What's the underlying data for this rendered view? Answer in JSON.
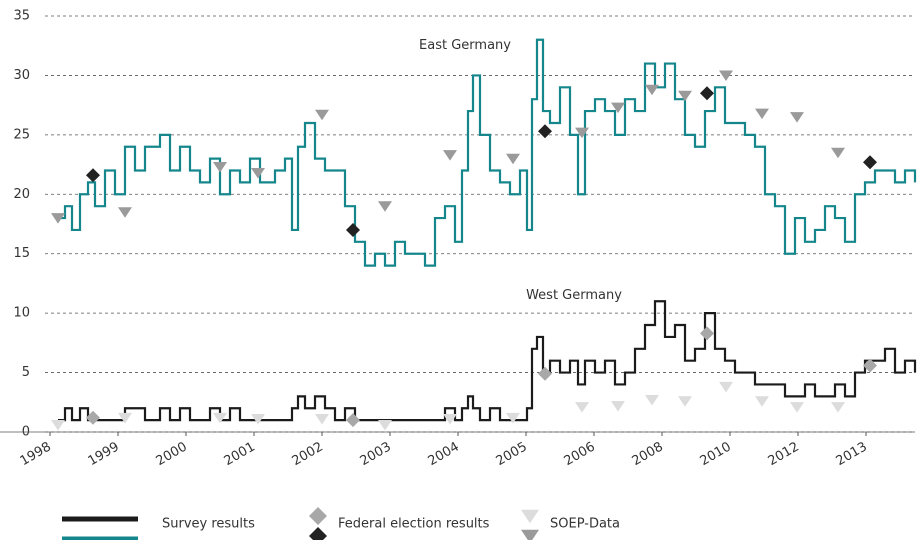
{
  "chart_data": {
    "type": "line",
    "annotations": [
      {
        "text": "East Germany",
        "x": 103.75,
        "y": 32.5
      },
      {
        "text": "West Germany",
        "x": 131,
        "y": 11.5
      }
    ],
    "x": [
      2,
      3.75,
      5.5,
      7.5,
      9.5,
      11.25,
      13.75,
      16.25,
      18.75,
      21.25,
      23.75,
      27.5,
      30,
      32.5,
      35,
      37.5,
      40,
      42.5,
      45,
      47.5,
      50,
      52.5,
      56.25,
      58.75,
      60.5,
      62,
      63.75,
      66.25,
      68.75,
      71.25,
      73.75,
      76.25,
      78.75,
      81.25,
      83.75,
      86.25,
      88.75,
      91.25,
      93.75,
      96.25,
      98.75,
      101.25,
      103,
      104.5,
      105.75,
      107.5,
      110,
      112.5,
      115,
      117.5,
      119.25,
      120.5,
      121.75,
      123.25,
      125,
      127.5,
      130,
      132,
      133.75,
      136.25,
      138.75,
      141.25,
      143.75,
      146.25,
      148.75,
      151.25,
      153.75,
      156.25,
      158.75,
      161.25,
      163.75,
      166.25,
      168.75,
      171.25,
      173.75,
      176.25,
      178.75,
      181.25,
      183.75,
      186.25,
      188.75,
      191.25,
      193.75,
      196.25,
      198.75,
      201.25,
      203.75,
      206.25,
      208.75,
      211.25,
      213.75,
      216.25
    ],
    "series": [
      {
        "color": "#1b1b1b",
        "values": [
          1,
          2,
          1,
          2,
          1,
          1,
          1,
          1,
          2,
          2,
          1,
          2,
          1,
          2,
          1,
          1,
          2,
          1,
          2,
          1,
          1,
          1,
          1,
          1,
          2,
          3,
          2,
          3,
          2,
          1,
          2,
          1,
          1,
          1,
          1,
          1,
          1,
          1,
          1,
          1,
          2,
          1,
          2,
          3,
          2,
          1,
          2,
          1,
          1,
          1,
          2,
          7,
          8,
          5,
          6,
          5,
          6,
          4,
          6,
          5,
          6,
          4,
          5,
          7,
          9,
          11,
          8,
          9,
          6,
          7,
          10,
          7,
          6,
          5,
          5,
          4,
          4,
          4,
          3,
          3,
          4,
          3,
          3,
          4,
          3,
          5,
          6,
          6,
          7,
          5,
          6,
          5
        ]
      },
      {
        "color": "#15878c",
        "values": [
          18,
          19,
          17,
          20,
          21,
          19,
          22,
          20,
          24,
          22,
          24,
          25,
          22,
          24,
          22,
          21,
          23,
          20,
          22,
          21,
          23,
          21,
          22,
          23,
          17,
          24,
          26,
          23,
          22,
          22,
          19,
          16,
          14,
          15,
          14,
          16,
          15,
          15,
          14,
          18,
          19,
          16,
          22,
          27,
          30,
          25,
          22,
          21,
          20,
          22,
          17,
          28,
          33,
          27,
          26,
          29,
          25,
          20,
          27,
          28,
          27,
          25,
          28,
          27,
          31,
          29,
          31,
          28,
          25,
          24,
          27,
          29,
          26,
          26,
          25,
          24,
          20,
          19,
          15,
          18,
          16,
          17,
          19,
          18,
          16,
          20,
          21,
          22,
          22,
          21,
          22,
          21
        ]
      }
    ],
    "markers": [
      {
        "shape": "triangle",
        "color": "#9a9a9a",
        "x": [
          2,
          18.75,
          42.5,
          52,
          68,
          83.75,
          100,
          115.75,
          133,
          142,
          150.5,
          158.75,
          169,
          178,
          186.75,
          197
        ],
        "values": [
          18,
          18.5,
          22.3,
          21.8,
          26.7,
          19,
          23.3,
          23,
          25.2,
          27.3,
          28.8,
          28.3,
          30,
          26.8,
          26.5,
          23.5
        ]
      },
      {
        "shape": "triangle",
        "color": "#dcdcdc",
        "x": [
          2,
          18.75,
          42.5,
          52,
          68,
          83.75,
          100,
          115.75,
          133,
          142,
          150.5,
          158.75,
          169,
          178,
          186.75,
          197
        ],
        "values": [
          0.6,
          1.2,
          1.2,
          1.1,
          1.1,
          0.6,
          1.1,
          1.2,
          2.1,
          2.2,
          2.7,
          2.6,
          3.8,
          2.6,
          2.1,
          2.1
        ]
      },
      {
        "shape": "diamond",
        "color": "#222222",
        "x": [
          10.75,
          75.75,
          123.75,
          164.25,
          205
        ],
        "values": [
          21.6,
          17,
          25.3,
          28.5,
          22.7
        ]
      },
      {
        "shape": "diamond",
        "color": "#a8a8a8",
        "x": [
          10.75,
          75.75,
          123.75,
          164.25,
          205
        ],
        "values": [
          1.2,
          1,
          4.9,
          8.3,
          5.6
        ]
      }
    ],
    "legend": [
      {
        "label": "Survey results",
        "items": [
          {
            "shape": "line",
            "color": "#1b1b1b"
          },
          {
            "shape": "line",
            "color": "#15878c"
          }
        ]
      },
      {
        "label": "Federal election results",
        "items": [
          {
            "shape": "diamond",
            "color": "#a8a8a8"
          },
          {
            "shape": "diamond",
            "color": "#222222"
          }
        ]
      },
      {
        "label": "SOEP-Data",
        "items": [
          {
            "shape": "triangle",
            "color": "#dcdcdc"
          },
          {
            "shape": "triangle",
            "color": "#9a9a9a"
          }
        ]
      }
    ],
    "xlim": [
      -1.25,
      216.25
    ],
    "xticks": [
      {
        "value": 0,
        "label": "1998"
      },
      {
        "value": 17,
        "label": "1999"
      },
      {
        "value": 34,
        "label": "2000"
      },
      {
        "value": 51,
        "label": "2001"
      },
      {
        "value": 68,
        "label": "2002"
      },
      {
        "value": 85,
        "label": "2003"
      },
      {
        "value": 102,
        "label": "2004"
      },
      {
        "value": 119,
        "label": "2005"
      },
      {
        "value": 136,
        "label": "2006"
      },
      {
        "value": 153,
        "label": "2008"
      },
      {
        "value": 170,
        "label": "2010"
      },
      {
        "value": 187,
        "label": "2012"
      },
      {
        "value": 204,
        "label": "2013"
      }
    ],
    "ylim": [
      0,
      35
    ],
    "yticks": [
      0,
      5,
      10,
      15,
      20,
      25,
      30,
      35
    ],
    "grid": true
  }
}
